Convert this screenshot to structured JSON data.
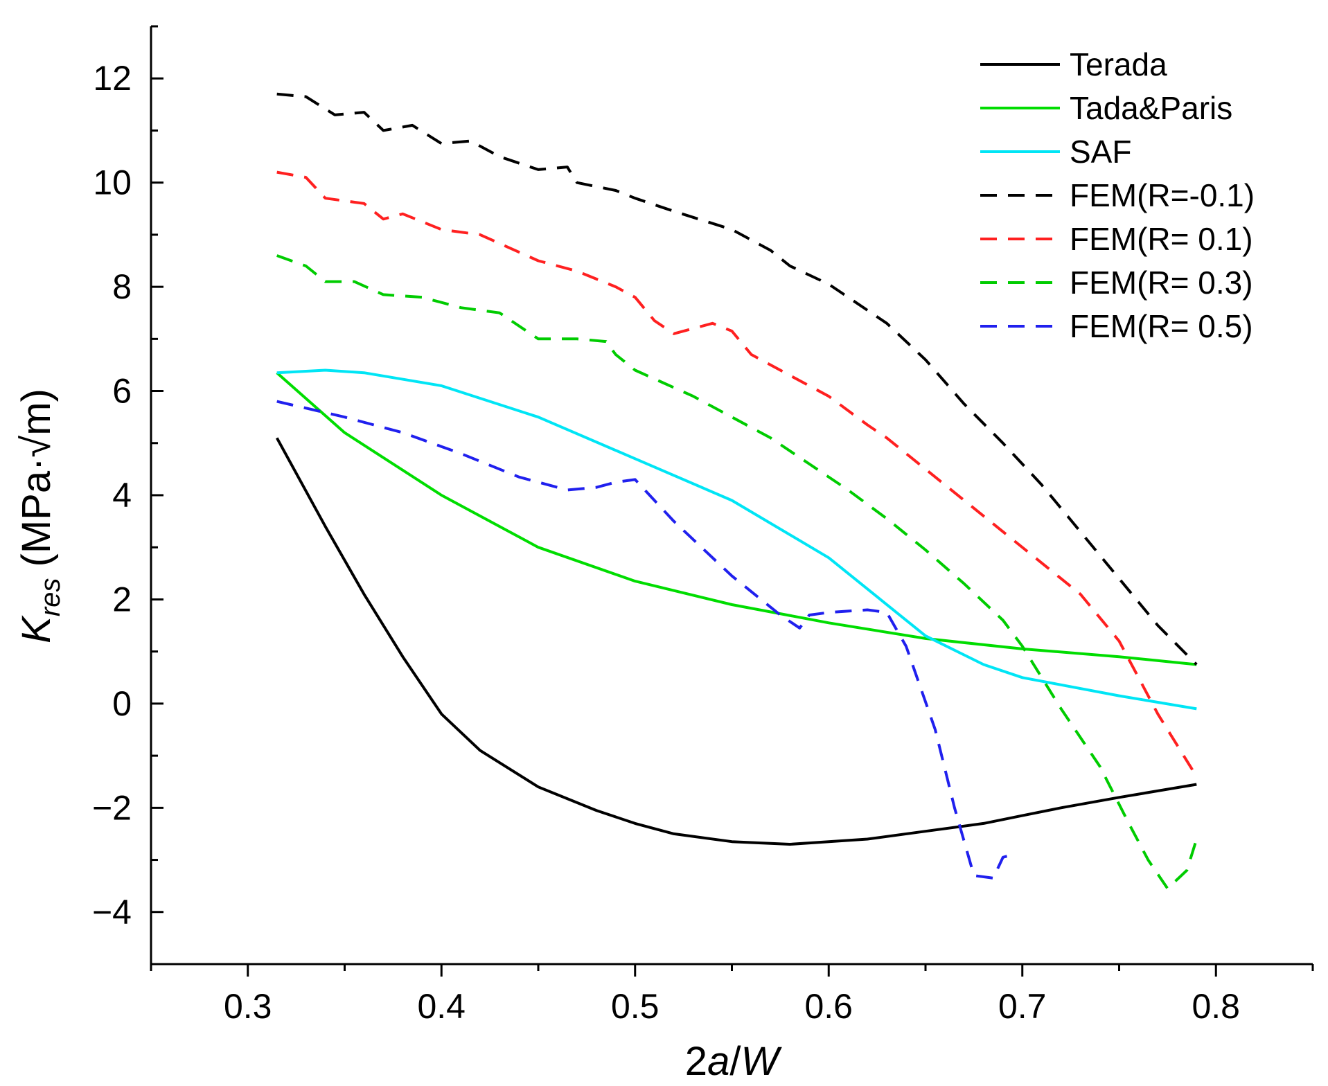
{
  "chart_data": {
    "type": "line",
    "title": "",
    "xlabel": {
      "parts": [
        {
          "text": "2",
          "italic": false
        },
        {
          "text": "a",
          "italic": true
        },
        {
          "text": "/",
          "italic": false
        },
        {
          "text": "W",
          "italic": true
        }
      ]
    },
    "ylabel": {
      "main": "K",
      "sub": "res",
      "unit": " (MPa·√m)"
    },
    "xlim": [
      0.25,
      0.85
    ],
    "ylim": [
      -5,
      13
    ],
    "x_ticks": [
      0.3,
      0.4,
      0.5,
      0.6,
      0.7,
      0.8
    ],
    "x_tick_labels": [
      "0.3",
      "0.4",
      "0.5",
      "0.6",
      "0.7",
      "0.8"
    ],
    "y_ticks": [
      -4,
      -2,
      0,
      2,
      4,
      6,
      8,
      10,
      12
    ],
    "y_tick_labels": [
      "−4",
      "−2",
      "0",
      "2",
      "4",
      "6",
      "8",
      "10",
      "12"
    ],
    "grid": false,
    "legend_position": "top-right",
    "series": [
      {
        "name": "Terada",
        "color": "#000000",
        "dash": "solid",
        "x": [
          0.315,
          0.34,
          0.36,
          0.38,
          0.4,
          0.42,
          0.45,
          0.48,
          0.5,
          0.52,
          0.55,
          0.58,
          0.6,
          0.62,
          0.65,
          0.68,
          0.7,
          0.72,
          0.75,
          0.79
        ],
        "y": [
          5.1,
          3.4,
          2.1,
          0.9,
          -0.2,
          -0.9,
          -1.6,
          -2.05,
          -2.3,
          -2.5,
          -2.65,
          -2.7,
          -2.65,
          -2.6,
          -2.45,
          -2.3,
          -2.15,
          -2.0,
          -1.8,
          -1.55
        ]
      },
      {
        "name": "Tada&Paris",
        "color": "#00dd00",
        "dash": "solid",
        "x": [
          0.315,
          0.35,
          0.4,
          0.45,
          0.5,
          0.55,
          0.6,
          0.65,
          0.7,
          0.75,
          0.79
        ],
        "y": [
          6.35,
          5.2,
          4.0,
          3.0,
          2.35,
          1.9,
          1.55,
          1.25,
          1.05,
          0.9,
          0.75
        ]
      },
      {
        "name": "SAF",
        "color": "#00e5f5",
        "dash": "solid",
        "x": [
          0.315,
          0.34,
          0.36,
          0.4,
          0.45,
          0.5,
          0.55,
          0.6,
          0.65,
          0.68,
          0.7,
          0.75,
          0.79
        ],
        "y": [
          6.35,
          6.4,
          6.35,
          6.1,
          5.5,
          4.7,
          3.9,
          2.8,
          1.3,
          0.75,
          0.5,
          0.15,
          -0.1
        ]
      },
      {
        "name": "FEM(R=-0.1)",
        "color": "#000000",
        "dash": "dashed",
        "x": [
          0.315,
          0.33,
          0.345,
          0.36,
          0.37,
          0.385,
          0.4,
          0.415,
          0.43,
          0.45,
          0.465,
          0.47,
          0.49,
          0.5,
          0.52,
          0.55,
          0.57,
          0.58,
          0.6,
          0.63,
          0.65,
          0.67,
          0.69,
          0.71,
          0.73,
          0.75,
          0.77,
          0.79
        ],
        "y": [
          11.7,
          11.65,
          11.3,
          11.35,
          11.0,
          11.1,
          10.75,
          10.8,
          10.5,
          10.25,
          10.3,
          10.0,
          9.85,
          9.7,
          9.45,
          9.1,
          8.7,
          8.4,
          8.05,
          7.3,
          6.6,
          5.75,
          5.0,
          4.2,
          3.3,
          2.4,
          1.5,
          0.75
        ]
      },
      {
        "name": "FEM(R= 0.1)",
        "color": "#ff2020",
        "dash": "dashed",
        "x": [
          0.315,
          0.33,
          0.34,
          0.36,
          0.37,
          0.38,
          0.4,
          0.42,
          0.45,
          0.47,
          0.49,
          0.5,
          0.51,
          0.52,
          0.54,
          0.55,
          0.56,
          0.58,
          0.6,
          0.62,
          0.63,
          0.65,
          0.67,
          0.69,
          0.71,
          0.73,
          0.75,
          0.77,
          0.79
        ],
        "y": [
          10.2,
          10.1,
          9.7,
          9.6,
          9.3,
          9.4,
          9.1,
          9.0,
          8.5,
          8.3,
          8.0,
          7.8,
          7.35,
          7.1,
          7.3,
          7.15,
          6.7,
          6.3,
          5.9,
          5.35,
          5.1,
          4.5,
          3.9,
          3.3,
          2.7,
          2.1,
          1.2,
          -0.2,
          -1.4
        ]
      },
      {
        "name": "FEM(R= 0.3)",
        "color": "#00cc00",
        "dash": "dashed",
        "x": [
          0.315,
          0.33,
          0.34,
          0.355,
          0.37,
          0.39,
          0.41,
          0.43,
          0.45,
          0.47,
          0.485,
          0.49,
          0.5,
          0.53,
          0.55,
          0.57,
          0.59,
          0.61,
          0.63,
          0.65,
          0.67,
          0.69,
          0.7,
          0.72,
          0.74,
          0.755,
          0.765,
          0.775,
          0.785,
          0.79
        ],
        "y": [
          8.6,
          8.4,
          8.1,
          8.1,
          7.85,
          7.8,
          7.6,
          7.5,
          7.0,
          7.0,
          6.95,
          6.7,
          6.4,
          5.9,
          5.5,
          5.1,
          4.6,
          4.1,
          3.55,
          2.95,
          2.3,
          1.6,
          1.1,
          -0.1,
          -1.2,
          -2.3,
          -3.0,
          -3.55,
          -3.2,
          -2.6
        ]
      },
      {
        "name": "FEM(R= 0.5)",
        "color": "#2020ee",
        "dash": "dashed",
        "x": [
          0.315,
          0.35,
          0.38,
          0.41,
          0.44,
          0.465,
          0.48,
          0.49,
          0.5,
          0.52,
          0.55,
          0.575,
          0.585,
          0.59,
          0.6,
          0.62,
          0.63,
          0.64,
          0.655,
          0.665,
          0.675,
          0.685,
          0.69,
          0.695
        ],
        "y": [
          5.8,
          5.5,
          5.2,
          4.8,
          4.35,
          4.1,
          4.15,
          4.25,
          4.3,
          3.5,
          2.45,
          1.7,
          1.45,
          1.7,
          1.75,
          1.8,
          1.75,
          1.1,
          -0.5,
          -2.0,
          -3.3,
          -3.35,
          -2.95,
          -2.9
        ]
      }
    ]
  }
}
